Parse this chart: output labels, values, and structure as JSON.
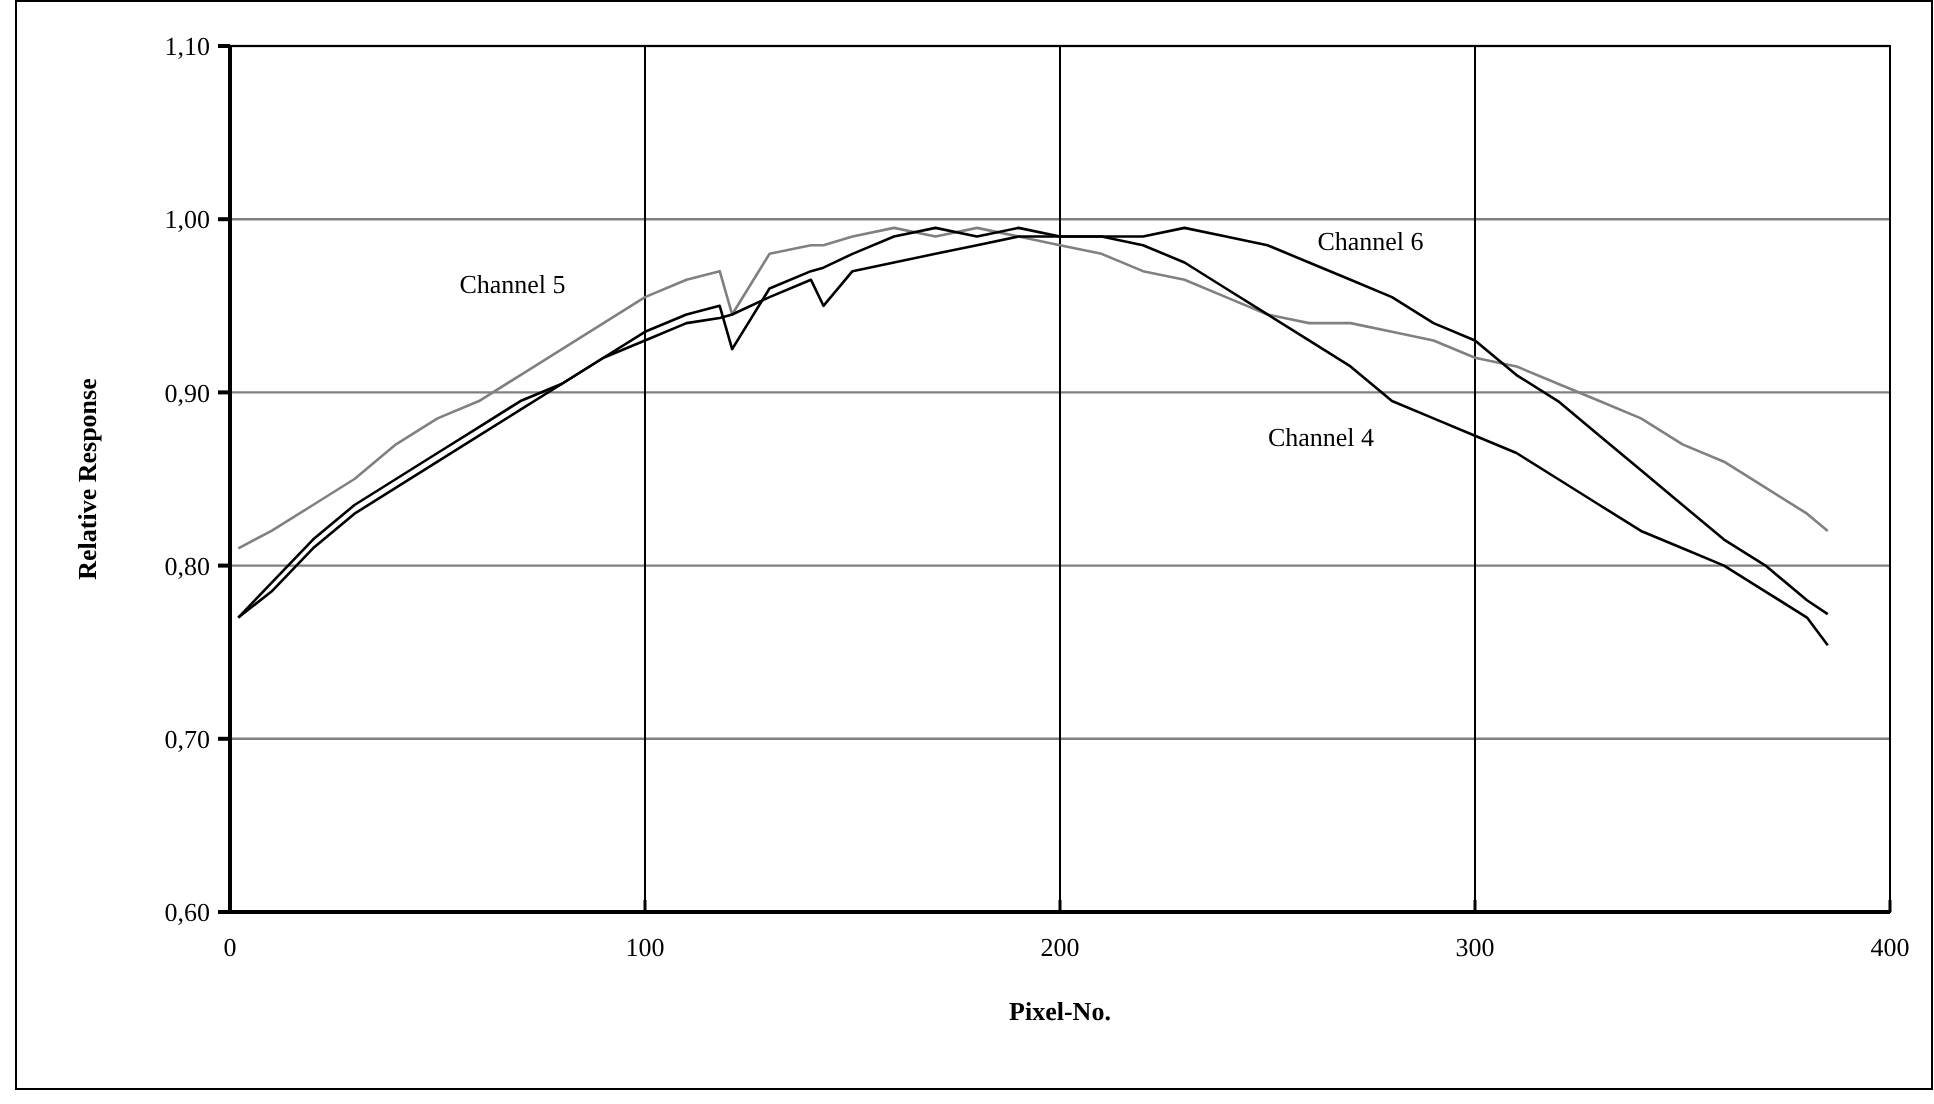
{
  "chart_data": {
    "type": "line",
    "xlabel": "Pixel-No.",
    "ylabel": "Relative Response",
    "xlim": [
      0,
      400
    ],
    "xticks": [
      0,
      100,
      200,
      300,
      400
    ],
    "ylim": [
      0.6,
      1.1
    ],
    "yticks": [
      {
        "value": 0.6,
        "label": "0,60"
      },
      {
        "value": 0.7,
        "label": "0,70"
      },
      {
        "value": 0.8,
        "label": "0,80"
      },
      {
        "value": 0.9,
        "label": "0,90"
      },
      {
        "value": 1.0,
        "label": "1,00"
      },
      {
        "value": 1.1,
        "label": "1,10"
      }
    ],
    "grid": true,
    "legend": false,
    "marker": "none",
    "line_style": "solid",
    "x": [
      2,
      10,
      20,
      30,
      40,
      50,
      60,
      70,
      80,
      90,
      100,
      110,
      118,
      121,
      130,
      140,
      143,
      150,
      160,
      170,
      180,
      190,
      200,
      210,
      220,
      230,
      240,
      250,
      260,
      270,
      280,
      290,
      300,
      310,
      320,
      330,
      340,
      350,
      360,
      370,
      380,
      385
    ],
    "series": [
      {
        "name": "Channel 5",
        "color": "#808080",
        "values": [
          0.81,
          0.82,
          0.835,
          0.85,
          0.87,
          0.885,
          0.895,
          0.91,
          0.925,
          0.94,
          0.955,
          0.965,
          0.97,
          0.945,
          0.98,
          0.985,
          0.985,
          0.99,
          0.995,
          0.99,
          0.995,
          0.99,
          0.985,
          0.98,
          0.97,
          0.965,
          0.955,
          0.945,
          0.94,
          0.94,
          0.935,
          0.93,
          0.92,
          0.915,
          0.905,
          0.895,
          0.885,
          0.87,
          0.86,
          0.845,
          0.83,
          0.82
        ]
      },
      {
        "name": "Channel 6",
        "color": "#000000",
        "values": [
          0.77,
          0.785,
          0.81,
          0.83,
          0.845,
          0.86,
          0.875,
          0.89,
          0.905,
          0.92,
          0.935,
          0.945,
          0.95,
          0.925,
          0.96,
          0.97,
          0.972,
          0.98,
          0.99,
          0.995,
          0.99,
          0.995,
          0.99,
          0.99,
          0.99,
          0.995,
          0.99,
          0.985,
          0.975,
          0.965,
          0.955,
          0.94,
          0.93,
          0.91,
          0.895,
          0.875,
          0.855,
          0.835,
          0.815,
          0.8,
          0.78,
          0.772
        ]
      },
      {
        "name": "Channel 4",
        "color": "#000000",
        "values": [
          0.77,
          0.79,
          0.815,
          0.835,
          0.85,
          0.865,
          0.88,
          0.895,
          0.905,
          0.92,
          0.93,
          0.94,
          0.943,
          0.945,
          0.955,
          0.965,
          0.95,
          0.97,
          0.975,
          0.98,
          0.985,
          0.99,
          0.99,
          0.99,
          0.985,
          0.975,
          0.96,
          0.945,
          0.93,
          0.915,
          0.895,
          0.885,
          0.875,
          0.865,
          0.85,
          0.835,
          0.82,
          0.81,
          0.8,
          0.785,
          0.77,
          0.754
        ]
      }
    ]
  }
}
